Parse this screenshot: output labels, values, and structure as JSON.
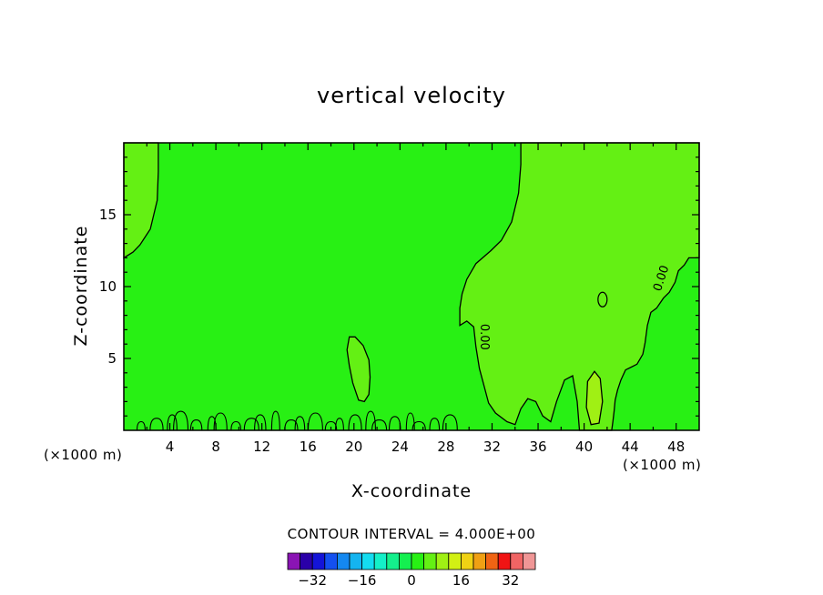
{
  "chart_data": {
    "type": "contour",
    "title": "vertical velocity",
    "xlabel": "X-coordinate",
    "ylabel": "Z-coordinate",
    "x_unit": "(×1000 m)",
    "x_range": [
      0,
      50
    ],
    "y_range": [
      0,
      20
    ],
    "x_ticks": [
      4,
      8,
      12,
      16,
      20,
      24,
      28,
      32,
      36,
      40,
      44,
      48
    ],
    "y_ticks": [
      5,
      10,
      15
    ],
    "background_value": 0,
    "contour_level_labels": [
      {
        "text": "0.00",
        "x": 31,
        "y": 6.5
      },
      {
        "text": "0.00",
        "x": 47,
        "y": 10.5
      }
    ],
    "regions": [
      {
        "name": "upper-left positive",
        "level": 4,
        "outline": [
          [
            0,
            20
          ],
          [
            3,
            20
          ],
          [
            3,
            18
          ],
          [
            2.9,
            16
          ],
          [
            2.3,
            14
          ],
          [
            1.4,
            12.9
          ],
          [
            0.8,
            12.4
          ],
          [
            0,
            12
          ]
        ]
      },
      {
        "name": "right positive",
        "level": 4,
        "outline": [
          [
            34.5,
            20
          ],
          [
            50,
            20
          ],
          [
            50,
            12
          ],
          [
            49.1,
            12
          ],
          [
            48.7,
            11.5
          ],
          [
            48.2,
            11.1
          ],
          [
            47.9,
            10.3
          ],
          [
            47.4,
            9.6
          ],
          [
            46.9,
            9.2
          ],
          [
            46.3,
            8.5
          ],
          [
            45.8,
            8.2
          ],
          [
            45.5,
            7.3
          ],
          [
            45.3,
            6.1
          ],
          [
            45.1,
            5.3
          ],
          [
            44.6,
            4.6
          ],
          [
            44.1,
            4.4
          ],
          [
            43.6,
            4.2
          ],
          [
            43.2,
            3.5
          ],
          [
            42.9,
            2.8
          ],
          [
            42.7,
            2.1
          ],
          [
            42.6,
            1.3
          ],
          [
            42.5,
            0.6
          ],
          [
            42.4,
            0
          ],
          [
            39.6,
            0
          ],
          [
            39.4,
            2
          ],
          [
            39.0,
            3.8
          ],
          [
            38.3,
            3.5
          ],
          [
            37.6,
            2
          ],
          [
            37.1,
            0.6
          ],
          [
            36.4,
            1
          ],
          [
            35.8,
            2
          ],
          [
            35.1,
            2.2
          ],
          [
            34.5,
            1.5
          ],
          [
            34.0,
            0.4
          ],
          [
            33.3,
            0.6
          ],
          [
            32.3,
            1.2
          ],
          [
            31.7,
            1.9
          ],
          [
            31.2,
            3.4
          ],
          [
            30.9,
            4.3
          ],
          [
            30.6,
            5.8
          ],
          [
            30.4,
            7.2
          ],
          [
            29.8,
            7.6
          ],
          [
            29.2,
            7.3
          ],
          [
            29.2,
            8.5
          ],
          [
            29.4,
            9.5
          ],
          [
            29.8,
            10.5
          ],
          [
            30.6,
            11.6
          ],
          [
            31.9,
            12.5
          ],
          [
            32.8,
            13.2
          ],
          [
            33.7,
            14.5
          ],
          [
            34.3,
            16.5
          ],
          [
            34.5,
            18.5
          ]
        ]
      },
      {
        "name": "mid-left bubble",
        "level": 4,
        "outline": [
          [
            19.6,
            6.5
          ],
          [
            20.1,
            6.5
          ],
          [
            20.8,
            5.9
          ],
          [
            21.3,
            4.9
          ],
          [
            21.4,
            3.7
          ],
          [
            21.3,
            2.5
          ],
          [
            20.9,
            2.0
          ],
          [
            20.4,
            2.1
          ],
          [
            19.9,
            3.3
          ],
          [
            19.6,
            4.5
          ],
          [
            19.4,
            5.6
          ]
        ]
      },
      {
        "name": "small positive cell",
        "level": 8,
        "outline": [
          [
            40.3,
            3.4
          ],
          [
            40.9,
            4.1
          ],
          [
            41.4,
            3.6
          ],
          [
            41.6,
            2.0
          ],
          [
            41.3,
            0.5
          ],
          [
            40.6,
            0.4
          ],
          [
            40.2,
            1.6
          ]
        ]
      }
    ],
    "colorbar": {
      "title": "CONTOUR INTERVAL = 4.000E+00",
      "levels": [
        -36,
        -32,
        -28,
        -24,
        -20,
        -16,
        -12,
        -8,
        -4,
        0,
        4,
        8,
        12,
        16,
        20,
        24,
        28,
        32,
        36
      ],
      "tick_labels": [
        "-32",
        "-16",
        "0",
        "16",
        "32"
      ],
      "colors": [
        "#8a14b4",
        "#2a00a8",
        "#1414d8",
        "#1450f0",
        "#1488f0",
        "#14b4f0",
        "#14dcf0",
        "#14f0c8",
        "#14f08c",
        "#14f050",
        "#28f014",
        "#64f014",
        "#a0f014",
        "#d2f014",
        "#f0d214",
        "#f0a014",
        "#f06414",
        "#f01414",
        "#f06464",
        "#f09696"
      ]
    }
  }
}
